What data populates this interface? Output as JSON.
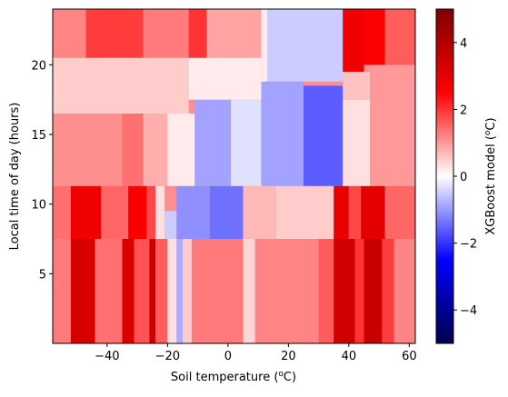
{
  "chart_data": {
    "type": "heatmap",
    "title": "",
    "xlabel": "Soil temperature (",
    "xlabel_sup": "o",
    "xlabel_unit": "C)",
    "ylabel": "Local time of day (hours)",
    "xlim": [
      -58,
      62
    ],
    "ylim": [
      0,
      24
    ],
    "x_ticks": [
      -40,
      -20,
      0,
      20,
      40,
      60
    ],
    "x_tick_labels": [
      "−40",
      "−20",
      "0",
      "20",
      "40",
      "60"
    ],
    "y_ticks": [
      5,
      10,
      15,
      20
    ],
    "y_tick_labels": [
      "5",
      "10",
      "15",
      "20"
    ],
    "colorbar": {
      "label": "XGBoost model (",
      "label_sup": "o",
      "label_unit": "C)",
      "range": [
        -5,
        5
      ],
      "colormap": "seismic",
      "ticks": [
        -4,
        -2,
        0,
        2,
        4
      ],
      "tick_labels": [
        "−4",
        "−2",
        "0",
        "2",
        "4"
      ]
    },
    "rects": [
      {
        "x0": -58,
        "x1": 62,
        "y0": 0,
        "y1": 24,
        "v": 1.1
      },
      {
        "x0": -58,
        "x1": -47,
        "y0": 0,
        "y1": 7.5,
        "v": 1.3
      },
      {
        "x0": -52,
        "x1": -44,
        "y0": 0,
        "y1": 7.5,
        "v": 3.3
      },
      {
        "x0": -44,
        "x1": -35,
        "y0": 0,
        "y1": 7.5,
        "v": 1.4
      },
      {
        "x0": -35,
        "x1": -31,
        "y0": 0,
        "y1": 7.5,
        "v": 3.2
      },
      {
        "x0": -31,
        "x1": -26,
        "y0": 0,
        "y1": 7.5,
        "v": 1.7
      },
      {
        "x0": -26,
        "x1": -24,
        "y0": 0,
        "y1": 7.5,
        "v": 3.5
      },
      {
        "x0": -24,
        "x1": -20,
        "y0": 0,
        "y1": 7.5,
        "v": 1.6
      },
      {
        "x0": -20,
        "x1": -17,
        "y0": 0,
        "y1": 7.5,
        "v": 0.3
      },
      {
        "x0": -17,
        "x1": -15,
        "y0": 0,
        "y1": 7.5,
        "v": -0.8
      },
      {
        "x0": -15,
        "x1": -12,
        "y0": 0,
        "y1": 7.5,
        "v": 0.5
      },
      {
        "x0": -12,
        "x1": 5,
        "y0": 0,
        "y1": 7.5,
        "v": 1.3
      },
      {
        "x0": 5,
        "x1": 9,
        "y0": 0,
        "y1": 7.5,
        "v": 0.4
      },
      {
        "x0": 9,
        "x1": 30,
        "y0": 0,
        "y1": 7.5,
        "v": 1.2
      },
      {
        "x0": 30,
        "x1": 35,
        "y0": 0,
        "y1": 7.5,
        "v": 1.6
      },
      {
        "x0": 35,
        "x1": 42,
        "y0": 0,
        "y1": 7.5,
        "v": 3.4
      },
      {
        "x0": 42,
        "x1": 45,
        "y0": 0,
        "y1": 7.5,
        "v": 2.0
      },
      {
        "x0": 45,
        "x1": 51,
        "y0": 0,
        "y1": 7.5,
        "v": 3.6
      },
      {
        "x0": 51,
        "x1": 55,
        "y0": 0,
        "y1": 7.5,
        "v": 1.9
      },
      {
        "x0": 55,
        "x1": 62,
        "y0": 0,
        "y1": 7.5,
        "v": 1.2
      },
      {
        "x0": -58,
        "x1": -52,
        "y0": 7.5,
        "y1": 11.3,
        "v": 1.4
      },
      {
        "x0": -52,
        "x1": -42,
        "y0": 7.5,
        "y1": 11.3,
        "v": 2.8
      },
      {
        "x0": -42,
        "x1": -33,
        "y0": 7.5,
        "y1": 11.3,
        "v": 1.5
      },
      {
        "x0": -33,
        "x1": -27,
        "y0": 7.5,
        "y1": 11.3,
        "v": 2.6
      },
      {
        "x0": -27,
        "x1": -24,
        "y0": 7.5,
        "y1": 11.3,
        "v": 1.8
      },
      {
        "x0": -24,
        "x1": -21,
        "y0": 7.5,
        "y1": 11.3,
        "v": 0.3
      },
      {
        "x0": -21,
        "x1": -17,
        "y0": 7.5,
        "y1": 9.5,
        "v": -0.5
      },
      {
        "x0": -17,
        "x1": -6,
        "y0": 7.5,
        "y1": 11.3,
        "v": -1.1
      },
      {
        "x0": -6,
        "x1": 5,
        "y0": 7.5,
        "y1": 11.3,
        "v": -1.4
      },
      {
        "x0": 5,
        "x1": 16,
        "y0": 7.5,
        "y1": 11.3,
        "v": 0.7
      },
      {
        "x0": 16,
        "x1": 35,
        "y0": 7.5,
        "y1": 11.3,
        "v": 0.5
      },
      {
        "x0": 35,
        "x1": 40,
        "y0": 7.5,
        "y1": 11.3,
        "v": 2.9
      },
      {
        "x0": 40,
        "x1": 44,
        "y0": 7.5,
        "y1": 11.3,
        "v": 1.8
      },
      {
        "x0": 44,
        "x1": 52,
        "y0": 7.5,
        "y1": 11.3,
        "v": 3.0
      },
      {
        "x0": 52,
        "x1": 62,
        "y0": 7.5,
        "y1": 11.3,
        "v": 1.5
      },
      {
        "x0": -58,
        "x1": -35,
        "y0": 11.3,
        "y1": 16.5,
        "v": 1.1
      },
      {
        "x0": -35,
        "x1": -28,
        "y0": 11.3,
        "y1": 16.5,
        "v": 1.4
      },
      {
        "x0": -28,
        "x1": -20,
        "y0": 11.3,
        "y1": 16.5,
        "v": 0.8
      },
      {
        "x0": -20,
        "x1": -11,
        "y0": 11.3,
        "y1": 16.5,
        "v": 0.2
      },
      {
        "x0": -11,
        "x1": 1,
        "y0": 11.3,
        "y1": 17.5,
        "v": -0.9
      },
      {
        "x0": 1,
        "x1": 11,
        "y0": 11.3,
        "y1": 17.5,
        "v": -0.3
      },
      {
        "x0": 11,
        "x1": 25,
        "y0": 11.3,
        "y1": 18.8,
        "v": -0.9
      },
      {
        "x0": 25,
        "x1": 38,
        "y0": 11.3,
        "y1": 18.5,
        "v": -1.6
      },
      {
        "x0": 38,
        "x1": 47,
        "y0": 11.3,
        "y1": 17.5,
        "v": 0.3
      },
      {
        "x0": 47,
        "x1": 62,
        "y0": 11.3,
        "y1": 16.5,
        "v": 1.0
      },
      {
        "x0": -58,
        "x1": -13,
        "y0": 16.5,
        "y1": 20.5,
        "v": 0.5
      },
      {
        "x0": -13,
        "x1": 11,
        "y0": 17.5,
        "y1": 20.5,
        "v": 0.2
      },
      {
        "x0": 11,
        "x1": 38,
        "y0": 18.8,
        "y1": 24,
        "v": -0.5
      },
      {
        "x0": 38,
        "x1": 47,
        "y0": 17.5,
        "y1": 19.5,
        "v": 0.6
      },
      {
        "x0": 47,
        "x1": 62,
        "y0": 16.5,
        "y1": 20,
        "v": 1.0
      },
      {
        "x0": -58,
        "x1": -47,
        "y0": 20.5,
        "y1": 24,
        "v": 1.2
      },
      {
        "x0": -47,
        "x1": -28,
        "y0": 20.5,
        "y1": 24,
        "v": 1.9
      },
      {
        "x0": -28,
        "x1": -13,
        "y0": 20.5,
        "y1": 24,
        "v": 1.3
      },
      {
        "x0": -13,
        "x1": -7,
        "y0": 20.5,
        "y1": 24,
        "v": 2.0
      },
      {
        "x0": -7,
        "x1": 11,
        "y0": 20.5,
        "y1": 24,
        "v": 0.9
      },
      {
        "x0": 11,
        "x1": 13,
        "y0": 18.8,
        "y1": 24,
        "v": 0.2
      },
      {
        "x0": 38,
        "x1": 45,
        "y0": 19.5,
        "y1": 24,
        "v": 2.8
      },
      {
        "x0": 45,
        "x1": 52,
        "y0": 20,
        "y1": 24,
        "v": 2.5
      },
      {
        "x0": 52,
        "x1": 62,
        "y0": 20,
        "y1": 24,
        "v": 1.6
      }
    ]
  }
}
